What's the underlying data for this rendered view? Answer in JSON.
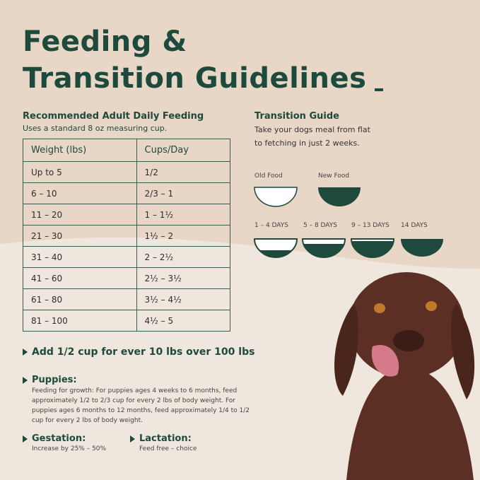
{
  "header": {
    "title_lines": [
      "Feeding &",
      "Transition Guidelines"
    ]
  },
  "feeding": {
    "heading": "Recommended Adult Daily Feeding",
    "subheading": "Uses a standard 8 oz measuring cup."
  },
  "table": {
    "columns": [
      "Weight (lbs)",
      "Cups/Day"
    ],
    "rows": [
      [
        "Up to 5",
        "1/2"
      ],
      [
        "6 – 10",
        "2/3 – 1"
      ],
      [
        "11 – 20",
        "1 – 1½"
      ],
      [
        "21 – 30",
        "1½ – 2"
      ],
      [
        "31 – 40",
        "2 – 2½"
      ],
      [
        "41 – 60",
        "2½ – 3½"
      ],
      [
        "61 – 80",
        "3½ – 4½"
      ],
      [
        "81 – 100",
        "4½ – 5"
      ]
    ]
  },
  "transition": {
    "heading": "Transition Guide",
    "description_lines": [
      "Take your dogs meal from flat",
      "to fetching in just 2 weeks."
    ],
    "legend": [
      "Old Food",
      "New Food"
    ],
    "stages": [
      "1 – 4 DAYS",
      "5 – 8 DAYS",
      "9 – 13 DAYS",
      "14 DAYS"
    ]
  },
  "notes": {
    "add": "Add 1/2 cup for ever 10 lbs over 100 lbs",
    "puppies": {
      "title": "Puppies:",
      "lines": [
        "Feeding for growth: For puppies ages 4 weeks to 6 months, feed",
        "approximately 1/2 to 2/3 cup for every 2 lbs of body weight. For",
        "puppies ages 6 months to 12 months, feed approximately 1/4 to 1/2",
        "cup for every 2 lbs of body weight."
      ]
    },
    "gestation": {
      "title": "Gestation:",
      "text": "Increase by 25% – 50%"
    },
    "lactation": {
      "title": "Lactation:",
      "text": "Feed free – choice"
    }
  }
}
